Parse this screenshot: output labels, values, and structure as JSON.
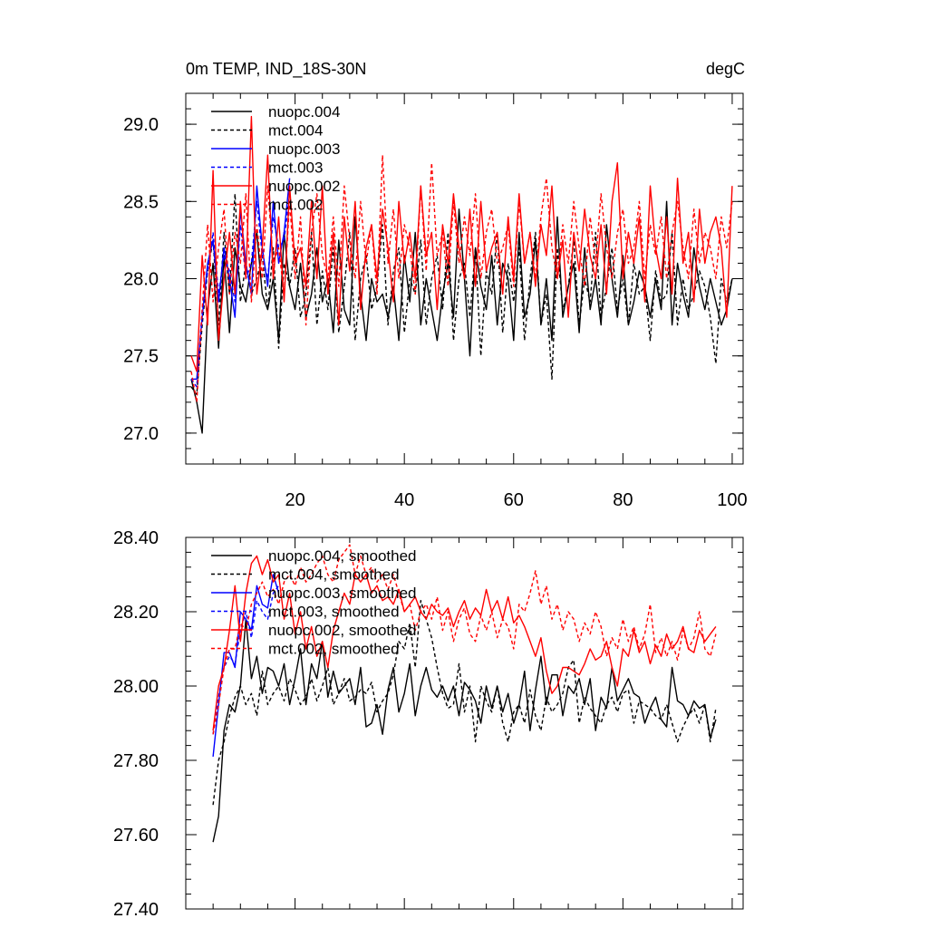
{
  "chart_data": [
    {
      "type": "line",
      "title": "0m TEMP, IND_18S-30N",
      "units": "degC",
      "xlim": [
        0,
        102
      ],
      "ylim": [
        26.8,
        29.2
      ],
      "xticks": [
        20,
        40,
        60,
        80,
        100
      ],
      "yticks": [
        27.0,
        27.5,
        28.0,
        28.5,
        29.0
      ],
      "ytick_labels": [
        "27.0",
        "27.5",
        "28.0",
        "28.5",
        "29.0"
      ],
      "grid": false,
      "legend_position": "top-left",
      "series": [
        {
          "name": "nuopc.004",
          "color": "#000000",
          "dash": "solid",
          "x_start": 1,
          "values": [
            27.35,
            27.2,
            27.0,
            27.8,
            28.1,
            27.55,
            28.15,
            27.65,
            28.2,
            27.95,
            27.85,
            28.1,
            28.3,
            27.9,
            27.8,
            28.0,
            27.6,
            28.3,
            27.95,
            27.8,
            28.1,
            27.75,
            27.9,
            28.2,
            27.85,
            28.0,
            27.65,
            28.25,
            27.8,
            27.7,
            28.4,
            27.9,
            27.6,
            28.0,
            27.85,
            27.9,
            27.75,
            27.95,
            27.6,
            28.15,
            27.85,
            28.3,
            27.7,
            28.0,
            27.8,
            27.6,
            27.9,
            28.1,
            27.75,
            28.45,
            28.0,
            27.5,
            28.2,
            27.95,
            27.8,
            28.15,
            27.7,
            28.1,
            28.0,
            27.6,
            28.3,
            27.75,
            27.9,
            28.25,
            27.7,
            28.0,
            27.6,
            28.4,
            27.75,
            27.95,
            28.1,
            27.65,
            28.2,
            27.8,
            28.0,
            27.7,
            28.35,
            28.0,
            27.75,
            28.15,
            27.7,
            27.85,
            28.05,
            27.95,
            27.75,
            28.0,
            27.8,
            28.5,
            27.7,
            28.1,
            27.9,
            27.75,
            28.2,
            27.95,
            27.8,
            28.0,
            27.85,
            27.7,
            27.8,
            28.0
          ]
        },
        {
          "name": "mct.004",
          "color": "#000000",
          "dash": "dashed",
          "x_start": 1,
          "values": [
            27.3,
            27.25,
            27.7,
            28.05,
            28.25,
            27.7,
            28.3,
            27.9,
            28.55,
            27.85,
            28.1,
            27.9,
            28.0,
            28.15,
            27.8,
            28.2,
            27.55,
            28.1,
            27.95,
            28.2,
            27.75,
            27.9,
            28.3,
            27.7,
            28.05,
            27.8,
            28.2,
            27.65,
            27.95,
            28.3,
            27.6,
            28.0,
            28.15,
            27.8,
            27.95,
            28.35,
            27.7,
            28.05,
            28.2,
            27.65,
            28.0,
            27.9,
            28.25,
            27.7,
            28.0,
            28.15,
            27.8,
            28.3,
            27.6,
            28.0,
            28.1,
            27.75,
            28.2,
            27.5,
            28.05,
            27.9,
            28.3,
            27.65,
            28.1,
            27.85,
            28.2,
            27.6,
            28.0,
            28.3,
            27.7,
            27.9,
            27.35,
            28.2,
            27.8,
            27.95,
            28.25,
            27.7,
            28.0,
            27.85,
            28.3,
            27.75,
            27.95,
            28.2,
            27.8,
            28.0,
            27.7,
            28.1,
            27.9,
            27.95,
            27.6,
            28.05,
            27.85,
            27.9,
            28.3,
            27.7,
            28.0,
            27.8,
            27.9,
            28.05,
            27.95,
            27.75,
            27.45,
            28.0,
            27.85,
            28.0
          ]
        },
        {
          "name": "nuopc.003",
          "color": "#0000ff",
          "dash": "solid",
          "x_start": 1,
          "values": [
            27.35,
            27.35,
            27.75,
            28.1,
            28.25,
            27.85,
            28.2,
            28.0,
            27.75,
            28.45,
            28.1,
            27.9,
            28.6,
            28.2,
            27.95,
            28.5,
            28.1,
            28.3,
            28.65
          ]
        },
        {
          "name": "mct.003",
          "color": "#0000ff",
          "dash": "dashed",
          "x_start": 1,
          "values": [
            27.35,
            27.3,
            27.8,
            28.05,
            28.3,
            27.9,
            28.15,
            28.05,
            27.85,
            28.35,
            28.0,
            28.1,
            28.5,
            28.15,
            28.0,
            28.4,
            28.2,
            28.25,
            28.55
          ]
        },
        {
          "name": "nuopc.002",
          "color": "#ff0000",
          "dash": "solid",
          "x_start": 1,
          "values": [
            27.5,
            27.4,
            28.15,
            27.7,
            28.7,
            27.6,
            28.0,
            28.3,
            27.9,
            28.5,
            28.0,
            29.05,
            27.9,
            28.2,
            28.8,
            28.0,
            28.4,
            27.85,
            28.6,
            28.1,
            28.2,
            27.95,
            28.5,
            28.0,
            28.6,
            27.9,
            28.3,
            27.7,
            28.4,
            28.05,
            28.5,
            27.8,
            28.2,
            28.35,
            28.0,
            28.45,
            28.2,
            27.85,
            28.5,
            28.1,
            28.3,
            28.0,
            28.6,
            28.15,
            28.3,
            27.8,
            28.35,
            28.1,
            28.55,
            28.2,
            28.0,
            28.45,
            27.95,
            28.5,
            28.05,
            28.2,
            28.3,
            27.9,
            28.4,
            28.0,
            28.55,
            28.1,
            28.3,
            27.95,
            28.35,
            28.15,
            28.6,
            28.0,
            28.25,
            27.75,
            28.3,
            28.05,
            28.45,
            28.15,
            28.0,
            28.35,
            27.9,
            28.5,
            28.75,
            28.0,
            28.3,
            28.1,
            28.4,
            27.85,
            28.6,
            28.2,
            28.0,
            28.4,
            27.9,
            28.65,
            28.1,
            28.3,
            27.85,
            28.45,
            28.1,
            28.3,
            28.4,
            28.2,
            27.75,
            28.6
          ]
        },
        {
          "name": "mct.002",
          "color": "#ff0000",
          "dash": "dashed",
          "x_start": 1,
          "values": [
            27.4,
            27.2,
            27.8,
            28.35,
            27.85,
            28.2,
            28.45,
            27.9,
            28.3,
            28.1,
            28.55,
            27.85,
            28.35,
            28.0,
            28.6,
            28.1,
            28.2,
            27.9,
            28.5,
            28.0,
            28.4,
            27.7,
            28.3,
            28.55,
            28.15,
            28.0,
            28.4,
            27.95,
            28.6,
            28.25,
            28.0,
            28.5,
            28.1,
            28.35,
            27.9,
            28.8,
            28.1,
            28.45,
            28.0,
            28.35,
            28.2,
            27.9,
            28.6,
            28.05,
            28.75,
            28.15,
            28.3,
            27.95,
            28.5,
            28.1,
            28.4,
            28.15,
            28.55,
            28.0,
            28.3,
            28.45,
            28.1,
            28.2,
            28.35,
            27.95,
            28.5,
            28.1,
            28.3,
            28.0,
            28.4,
            28.65,
            28.2,
            28.0,
            28.35,
            28.1,
            28.5,
            28.2,
            27.95,
            28.4,
            28.1,
            28.55,
            28.2,
            28.0,
            28.3,
            28.45,
            28.1,
            28.2,
            28.5,
            28.0,
            28.35,
            28.15,
            28.4,
            28.0,
            28.3,
            28.5,
            28.2,
            28.0,
            28.45,
            28.1,
            28.3,
            28.2,
            28.0,
            28.4,
            28.2,
            28.5
          ]
        }
      ]
    },
    {
      "type": "line",
      "title": "",
      "xlim": [
        0,
        102
      ],
      "ylim": [
        27.4,
        28.4
      ],
      "xticks": [
        20,
        40,
        60,
        80,
        100
      ],
      "yticks": [
        27.4,
        27.6,
        27.8,
        28.0,
        28.2,
        28.4
      ],
      "ytick_labels": [
        "27.40",
        "27.60",
        "27.80",
        "28.00",
        "28.20",
        "28.40"
      ],
      "grid": false,
      "legend_position": "top-left",
      "series": [
        {
          "name": "nuopc.004, smoothed",
          "color": "#000000",
          "dash": "solid",
          "x_start": 5,
          "values": [
            27.58,
            27.65,
            27.88,
            27.95,
            27.93,
            28.0,
            28.18,
            28.02,
            28.08,
            27.98,
            28.05,
            28.04,
            28.0,
            28.06,
            27.95,
            28.02,
            28.1,
            27.95,
            28.06,
            28.02,
            28.12,
            27.97,
            28.04,
            27.98,
            28.0,
            28.02,
            27.95,
            28.05,
            27.89,
            27.9,
            27.95,
            27.87,
            27.99,
            28.05,
            27.93,
            27.98,
            28.06,
            27.92,
            28.0,
            28.05,
            27.99,
            27.97,
            28.0,
            27.96,
            28.0,
            27.92,
            28.01,
            27.99,
            27.96,
            27.9,
            28.0,
            27.94,
            28.0,
            27.93,
            27.98,
            27.9,
            27.95,
            28.04,
            27.88,
            27.99,
            28.08,
            27.95,
            28.03,
            28.03,
            27.92,
            28.0,
            27.98,
            28.02,
            27.95,
            28.02,
            27.88,
            27.97,
            27.94,
            28.05,
            27.96,
            27.99,
            28.02,
            27.98,
            27.97,
            27.9,
            27.94,
            27.97,
            27.91,
            27.89,
            28.05,
            27.96,
            27.95,
            27.92,
            27.96,
            27.94,
            27.95,
            27.86,
            27.91
          ]
        },
        {
          "name": "mct.004, smoothed",
          "color": "#000000",
          "dash": "dashed",
          "x_start": 5,
          "values": [
            27.68,
            27.8,
            27.85,
            27.92,
            27.97,
            28.0,
            27.95,
            27.98,
            27.92,
            28.04,
            27.95,
            27.98,
            28.0,
            27.96,
            28.02,
            27.99,
            27.95,
            27.97,
            28.02,
            27.96,
            28.0,
            28.05,
            27.95,
            27.98,
            28.02,
            27.96,
            27.97,
            27.99,
            27.98,
            28.01,
            27.93,
            27.96,
            27.98,
            28.03,
            28.12,
            28.1,
            28.17,
            28.05,
            28.23,
            28.18,
            28.13,
            28.05,
            27.98,
            27.94,
            27.95,
            28.06,
            27.93,
            28.0,
            27.85,
            28.0,
            27.96,
            27.93,
            28.0,
            27.9,
            27.85,
            27.93,
            27.95,
            27.9,
            27.99,
            27.92,
            27.88,
            27.97,
            27.93,
            27.95,
            27.98,
            28.05,
            28.07,
            27.9,
            27.97,
            27.94,
            27.92,
            27.9,
            27.95,
            27.97,
            27.93,
            27.98,
            27.99,
            27.9,
            27.96,
            27.95,
            27.94,
            27.92,
            27.91,
            27.95,
            27.9,
            27.85,
            27.89,
            27.92,
            27.94,
            27.9,
            27.95,
            27.85,
            27.94
          ]
        },
        {
          "name": "nuopc.003, smoothed",
          "color": "#0000ff",
          "dash": "solid",
          "x_start": 5,
          "values": [
            27.81,
            27.95,
            28.09,
            28.09,
            28.05,
            28.2,
            28.18,
            28.15,
            28.27,
            28.22,
            28.21,
            28.3,
            28.25
          ]
        },
        {
          "name": "mct.003, smoothed",
          "color": "#0000ff",
          "dash": "dashed",
          "x_start": 5,
          "values": [
            27.87,
            27.97,
            28.05,
            28.08,
            28.06,
            28.15,
            28.2,
            28.13,
            28.23,
            28.2,
            28.18,
            28.25,
            28.27
          ]
        },
        {
          "name": "nuopc.002, smoothed",
          "color": "#ff0000",
          "dash": "solid",
          "x_start": 5,
          "values": [
            27.88,
            28.0,
            28.05,
            28.15,
            28.27,
            28.12,
            28.25,
            28.33,
            28.35,
            28.3,
            28.34,
            28.28,
            28.3,
            28.18,
            28.25,
            28.14,
            28.2,
            28.1,
            28.16,
            28.08,
            28.12,
            28.05,
            28.15,
            28.2,
            28.25,
            28.22,
            28.3,
            28.28,
            28.3,
            28.25,
            28.27,
            28.23,
            28.24,
            28.22,
            28.26,
            28.2,
            28.22,
            28.24,
            28.2,
            28.18,
            28.22,
            28.2,
            28.19,
            28.21,
            28.16,
            28.2,
            28.23,
            28.18,
            28.21,
            28.19,
            28.26,
            28.2,
            28.23,
            28.18,
            28.24,
            28.17,
            28.19,
            28.16,
            28.12,
            28.08,
            28.13,
            28.04,
            27.98,
            28.0,
            28.05,
            28.05,
            28.04,
            28.03,
            28.06,
            28.1,
            28.07,
            28.08,
            28.12,
            28.05,
            28.0,
            28.1,
            28.08,
            28.15,
            28.09,
            28.12,
            28.06,
            28.11,
            28.08,
            28.14,
            28.1,
            28.12,
            28.16,
            28.1,
            28.09,
            28.15,
            28.12,
            28.14,
            28.16
          ]
        },
        {
          "name": "mct.002, smoothed",
          "color": "#ff0000",
          "dash": "dashed",
          "x_start": 5,
          "values": [
            27.87,
            27.95,
            28.05,
            28.1,
            28.1,
            28.17,
            28.15,
            28.22,
            28.25,
            28.28,
            28.24,
            28.26,
            28.22,
            28.28,
            28.3,
            28.27,
            28.32,
            28.28,
            28.3,
            28.33,
            28.35,
            28.3,
            28.28,
            28.34,
            28.36,
            28.38,
            28.3,
            28.35,
            28.3,
            28.32,
            28.28,
            28.3,
            28.26,
            28.3,
            28.25,
            28.2,
            28.22,
            28.15,
            28.2,
            28.22,
            28.18,
            28.24,
            28.15,
            28.2,
            28.12,
            28.18,
            28.21,
            28.14,
            28.12,
            28.19,
            28.15,
            28.2,
            28.13,
            28.18,
            28.16,
            28.1,
            28.22,
            28.2,
            28.25,
            28.31,
            28.22,
            28.27,
            28.18,
            28.22,
            28.15,
            28.2,
            28.18,
            28.12,
            28.17,
            28.14,
            28.2,
            28.16,
            28.08,
            28.13,
            28.1,
            28.18,
            28.12,
            28.16,
            28.1,
            28.14,
            28.22,
            28.09,
            28.13,
            28.08,
            28.12,
            28.07,
            28.15,
            28.1,
            28.13,
            28.2,
            28.1,
            28.08,
            28.14
          ]
        }
      ]
    }
  ]
}
